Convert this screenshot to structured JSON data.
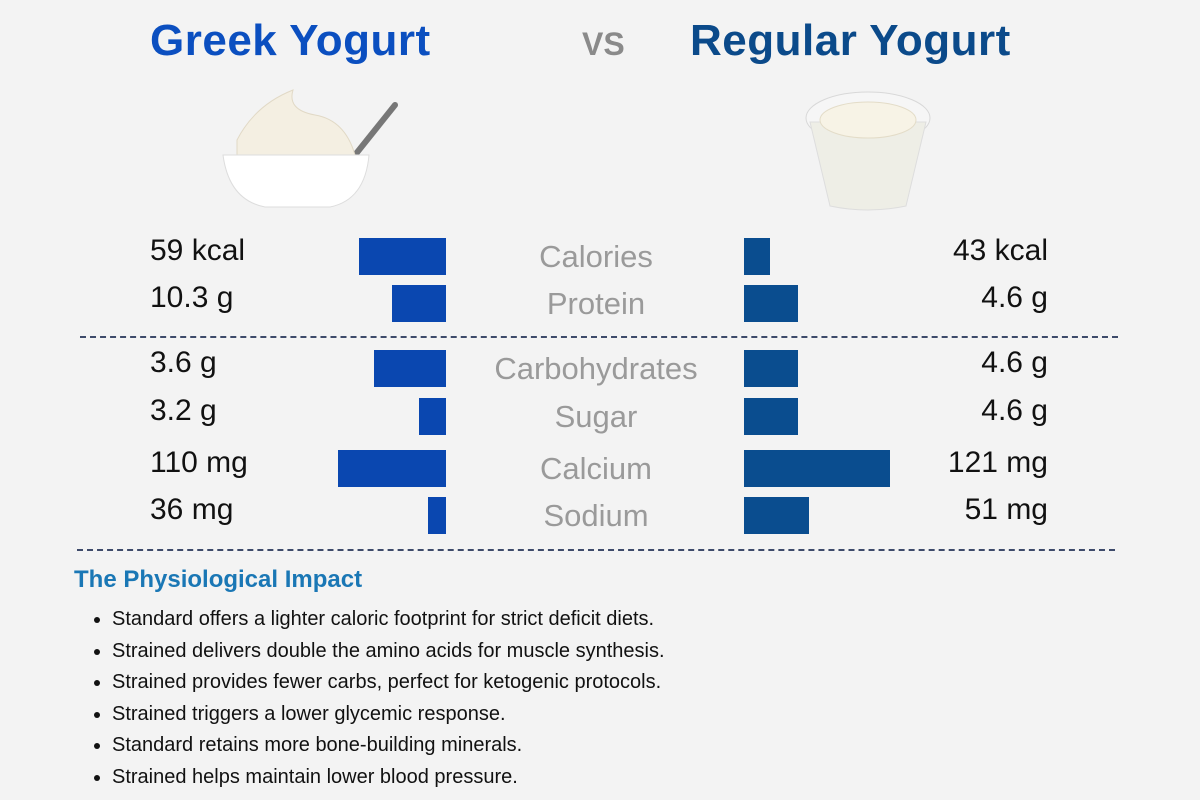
{
  "header": {
    "left_title": "Greek Yogurt",
    "vs": "VS",
    "right_title": "Regular Yogurt"
  },
  "images": {
    "left": "greek-yogurt-bowl",
    "right": "regular-yogurt-cup"
  },
  "colors": {
    "left_bar": "#0a47b0",
    "right_bar": "#0a4d8f",
    "left_title": "#0b4fc0",
    "right_title": "#0b4a8a",
    "heading": "#1a77b5"
  },
  "chart_data": {
    "type": "bar",
    "categories": [
      "Calories",
      "Protein",
      "Carbohydrates",
      "Sugar",
      "Calcium",
      "Sodium"
    ],
    "series": [
      {
        "name": "Greek Yogurt",
        "values": [
          59,
          10.3,
          3.6,
          3.2,
          110,
          36
        ],
        "labels": [
          "59 kcal",
          "10.3 g",
          "3.6 g",
          "3.2 g",
          "110 mg",
          "36 mg"
        ]
      },
      {
        "name": "Regular Yogurt",
        "values": [
          43,
          4.6,
          4.6,
          4.6,
          121,
          51
        ],
        "labels": [
          "43 kcal",
          "4.6 g",
          "4.6 g",
          "4.6 g",
          "121 mg",
          "51 mg"
        ]
      }
    ],
    "orientation": "horizontal-butterfly"
  },
  "impact": {
    "heading": "The Physiological Impact",
    "bullets": [
      "Standard offers a lighter caloric footprint for strict deficit diets.",
      "Strained delivers double the amino acids for muscle synthesis.",
      "Strained provides fewer carbs, perfect for ketogenic protocols.",
      "Strained triggers a lower glycemic response.",
      "Standard retains more bone-building minerals.",
      "Strained helps maintain lower blood pressure."
    ]
  }
}
